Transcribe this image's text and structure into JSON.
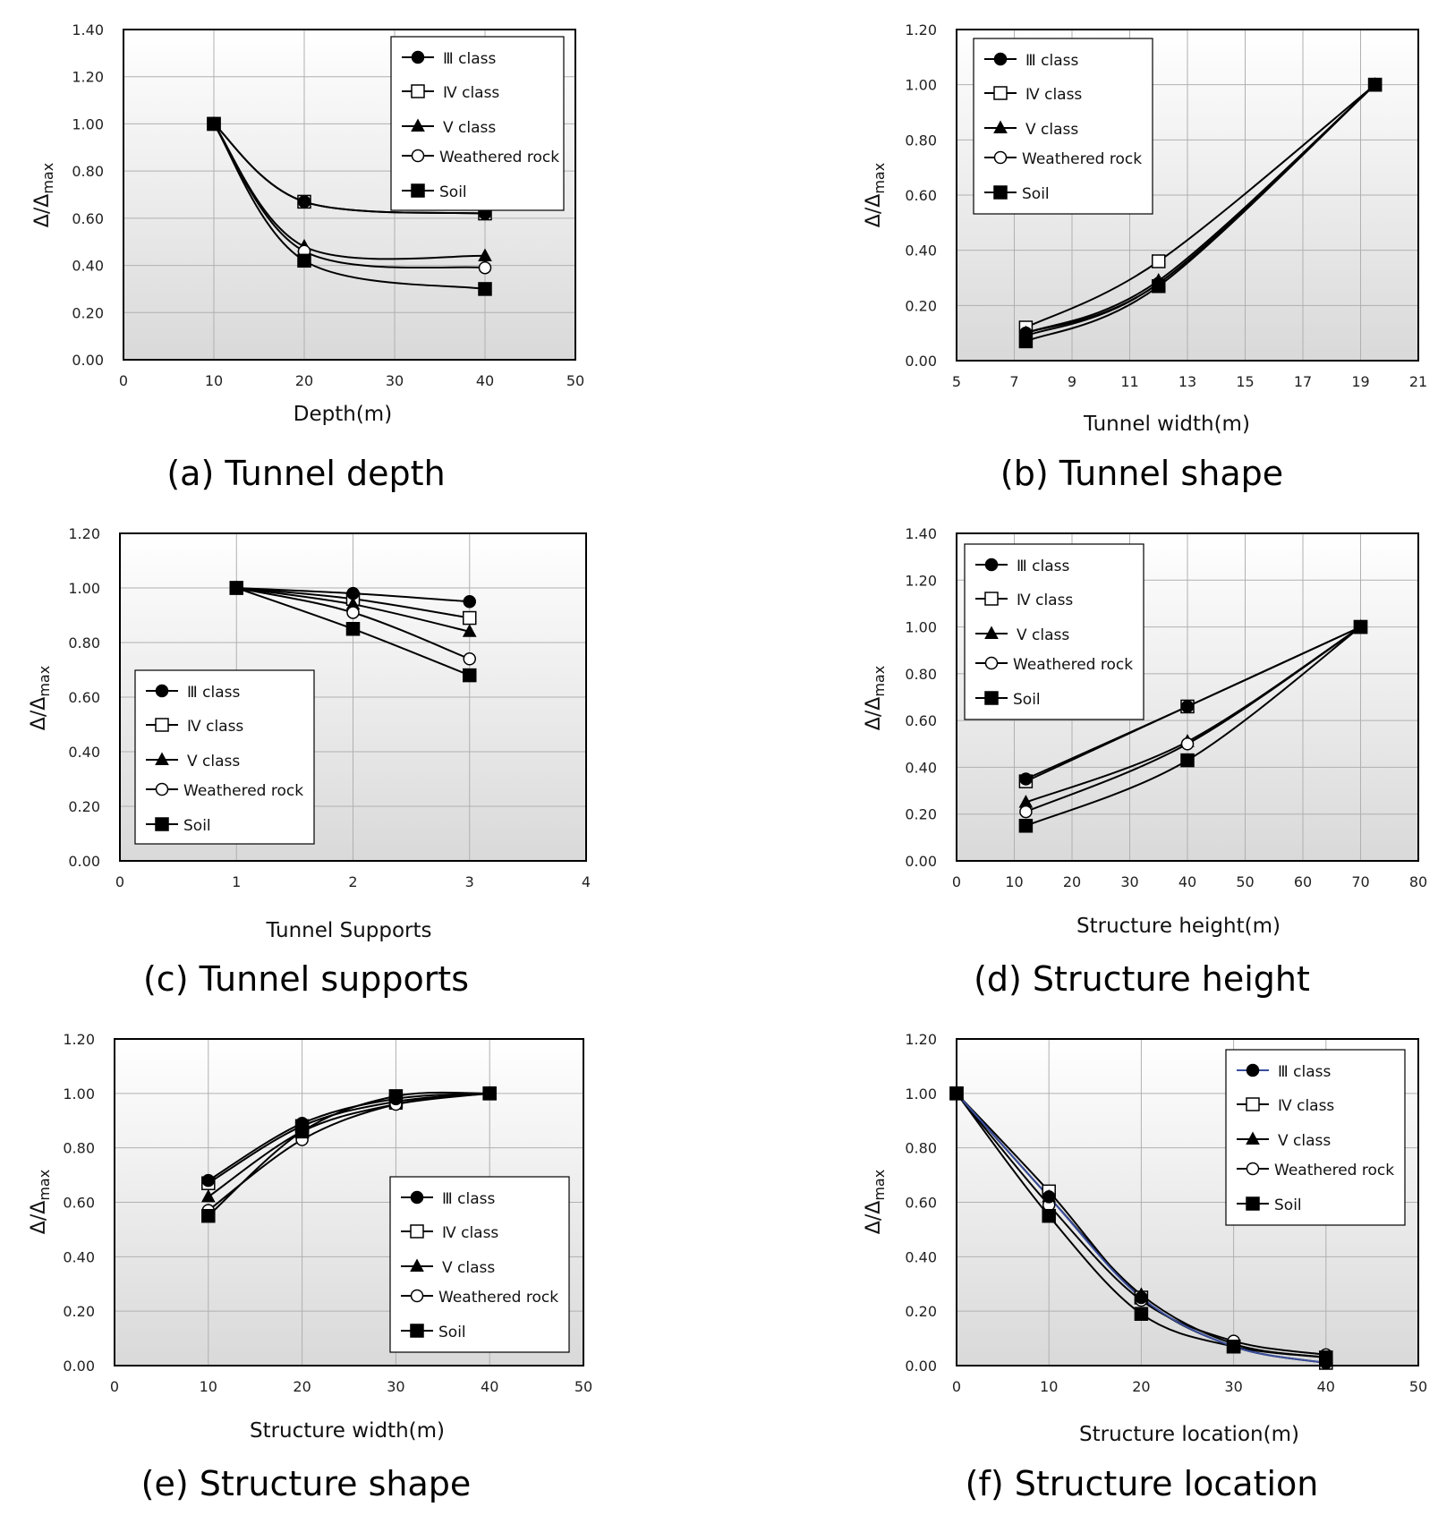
{
  "figure": {
    "y_label_main": "Δ/Δ",
    "y_label_sub": "max",
    "legend_labels": [
      "Ⅲ class",
      "Ⅳ class",
      "Ⅴ class",
      "Weathered rock",
      "Soil"
    ],
    "markers": [
      "filled-circle",
      "open-square",
      "filled-triangle",
      "open-circle",
      "filled-square"
    ],
    "colors": {
      "line": "#000000",
      "grid": "#b0b0b0",
      "plot_bg_top": "#ffffff",
      "plot_bg_bottom": "#d9d9d9",
      "series_line_f_first": "#3a4e9c"
    }
  },
  "chart_data": [
    {
      "type": "line",
      "caption": "(a) Tunnel depth",
      "xlabel": "Depth(m)",
      "ylabel": "Δ/Δmax",
      "xlim": [
        0,
        50
      ],
      "ylim": [
        0,
        1.4
      ],
      "xticks": [
        "0",
        "10",
        "20",
        "30",
        "40",
        "50"
      ],
      "yticks": [
        "0.00",
        "0.20",
        "0.40",
        "0.60",
        "0.80",
        "1.00",
        "1.20",
        "1.40"
      ],
      "grid": true,
      "legend": "top-right",
      "x": [
        10,
        20,
        40
      ],
      "series": [
        {
          "name": "Ⅲ class",
          "values": [
            1.0,
            0.67,
            0.62
          ]
        },
        {
          "name": "Ⅳ class",
          "values": [
            1.0,
            0.67,
            0.62
          ]
        },
        {
          "name": "Ⅴ class",
          "values": [
            1.0,
            0.48,
            0.44
          ]
        },
        {
          "name": "Weathered rock",
          "values": [
            1.0,
            0.46,
            0.39
          ]
        },
        {
          "name": "Soil",
          "values": [
            1.0,
            0.42,
            0.3
          ]
        }
      ]
    },
    {
      "type": "line",
      "caption": "(b) Tunnel shape",
      "xlabel": "Tunnel  width(m)",
      "ylabel": "Δ/Δmax",
      "xlim": [
        5,
        21
      ],
      "ylim": [
        0,
        1.2
      ],
      "xticks": [
        "5",
        "7",
        "9",
        "11",
        "13",
        "15",
        "17",
        "19",
        "21"
      ],
      "yticks": [
        "0.00",
        "0.20",
        "0.40",
        "0.60",
        "0.80",
        "1.00",
        "1.20"
      ],
      "grid": true,
      "legend": "top-left",
      "x": [
        7.4,
        12.0,
        19.5
      ],
      "series": [
        {
          "name": "Ⅲ class",
          "values": [
            0.1,
            0.28,
            1.0
          ]
        },
        {
          "name": "Ⅳ class",
          "values": [
            0.12,
            0.36,
            1.0
          ]
        },
        {
          "name": "Ⅴ class",
          "values": [
            0.1,
            0.29,
            1.0
          ]
        },
        {
          "name": "Weathered rock",
          "values": [
            0.09,
            0.28,
            1.0
          ]
        },
        {
          "name": "Soil",
          "values": [
            0.07,
            0.27,
            1.0
          ]
        }
      ]
    },
    {
      "type": "line",
      "caption": "(c) Tunnel supports",
      "xlabel": "Tunnel Supports",
      "ylabel": "Δ/Δmax",
      "xlim": [
        0,
        4
      ],
      "ylim": [
        0,
        1.2
      ],
      "xticks": [
        "0",
        "1",
        "2",
        "3",
        "4"
      ],
      "yticks": [
        "0.00",
        "0.20",
        "0.40",
        "0.60",
        "0.80",
        "1.00",
        "1.20"
      ],
      "grid": true,
      "legend": "bottom-left",
      "x": [
        1,
        2,
        3
      ],
      "series": [
        {
          "name": "Ⅲ class",
          "values": [
            1.0,
            0.98,
            0.95
          ]
        },
        {
          "name": "Ⅳ class",
          "values": [
            1.0,
            0.96,
            0.89
          ]
        },
        {
          "name": "Ⅴ class",
          "values": [
            1.0,
            0.94,
            0.84
          ]
        },
        {
          "name": "Weathered rock",
          "values": [
            1.0,
            0.91,
            0.74
          ]
        },
        {
          "name": "Soil",
          "values": [
            1.0,
            0.85,
            0.68
          ]
        }
      ]
    },
    {
      "type": "line",
      "caption": "(d) Structure height",
      "xlabel": "Structure  height(m)",
      "ylabel": "Δ/Δmax",
      "xlim": [
        0,
        80
      ],
      "ylim": [
        0,
        1.4
      ],
      "xticks": [
        "0",
        "10",
        "20",
        "30",
        "40",
        "50",
        "60",
        "70",
        "80"
      ],
      "yticks": [
        "0.00",
        "0.20",
        "0.40",
        "0.60",
        "0.80",
        "1.00",
        "1.20",
        "1.40"
      ],
      "grid": true,
      "legend": "top-left",
      "x": [
        12,
        40,
        70
      ],
      "series": [
        {
          "name": "Ⅲ class",
          "values": [
            0.35,
            0.66,
            1.0
          ]
        },
        {
          "name": "Ⅳ class",
          "values": [
            0.34,
            0.66,
            1.0
          ]
        },
        {
          "name": "Ⅴ class",
          "values": [
            0.25,
            0.51,
            1.0
          ]
        },
        {
          "name": "Weathered rock",
          "values": [
            0.21,
            0.5,
            1.0
          ]
        },
        {
          "name": "Soil",
          "values": [
            0.15,
            0.43,
            1.0
          ]
        }
      ]
    },
    {
      "type": "line",
      "caption": "(e) Structure shape",
      "xlabel": "Structure  width(m)",
      "ylabel": "Δ/Δmax",
      "xlim": [
        0,
        50
      ],
      "ylim": [
        0,
        1.2
      ],
      "xticks": [
        "0",
        "10",
        "20",
        "30",
        "40",
        "50"
      ],
      "yticks": [
        "0.00",
        "0.20",
        "0.40",
        "0.60",
        "0.80",
        "1.00",
        "1.20"
      ],
      "grid": true,
      "legend": "bottom-right",
      "x": [
        10,
        20,
        30,
        40
      ],
      "series": [
        {
          "name": "Ⅲ class",
          "values": [
            0.68,
            0.89,
            0.98,
            1.0
          ]
        },
        {
          "name": "Ⅳ class",
          "values": [
            0.67,
            0.88,
            0.97,
            1.0
          ]
        },
        {
          "name": "Ⅴ class",
          "values": [
            0.62,
            0.86,
            0.96,
            1.0
          ]
        },
        {
          "name": "Weathered rock",
          "values": [
            0.57,
            0.83,
            0.96,
            1.0
          ]
        },
        {
          "name": "Soil",
          "values": [
            0.55,
            0.86,
            0.99,
            1.0
          ]
        }
      ]
    },
    {
      "type": "line",
      "caption": "(f) Structure location",
      "xlabel": "Structure  location(m)",
      "ylabel": "Δ/Δmax",
      "xlim": [
        0,
        50
      ],
      "ylim": [
        0,
        1.2
      ],
      "xticks": [
        "0",
        "10",
        "20",
        "30",
        "40",
        "50"
      ],
      "yticks": [
        "0.00",
        "0.20",
        "0.40",
        "0.60",
        "0.80",
        "1.00",
        "1.20"
      ],
      "grid": true,
      "legend": "top-right",
      "x": [
        0,
        10,
        20,
        30,
        40
      ],
      "series": [
        {
          "name": "Ⅲ class",
          "values": [
            1.0,
            0.62,
            0.25,
            0.07,
            0.01
          ]
        },
        {
          "name": "Ⅳ class",
          "values": [
            1.0,
            0.64,
            0.25,
            0.07,
            0.01
          ]
        },
        {
          "name": "Ⅴ class",
          "values": [
            1.0,
            0.62,
            0.26,
            0.08,
            0.03
          ]
        },
        {
          "name": "Weathered rock",
          "values": [
            1.0,
            0.59,
            0.24,
            0.09,
            0.04
          ]
        },
        {
          "name": "Soil",
          "values": [
            1.0,
            0.55,
            0.19,
            0.07,
            0.03
          ]
        }
      ]
    }
  ]
}
